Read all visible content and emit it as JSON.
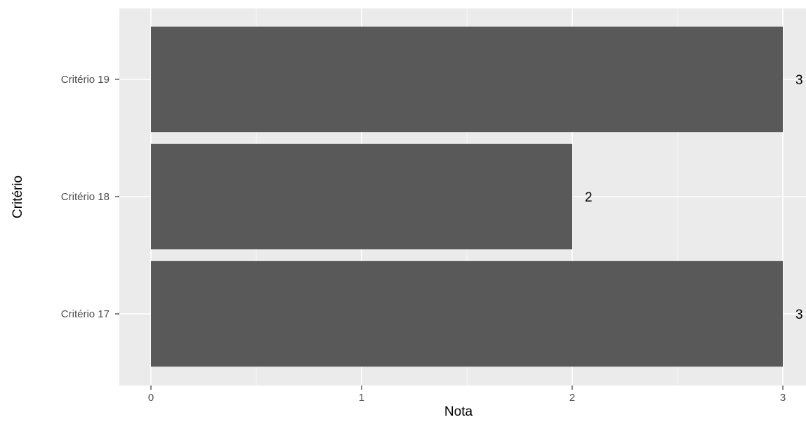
{
  "chart_data": {
    "type": "bar",
    "orientation": "horizontal",
    "categories": [
      "Critério 17",
      "Critério 18",
      "Critério 19"
    ],
    "values": [
      3,
      2,
      3
    ],
    "data_labels": [
      "3",
      "2",
      "3"
    ],
    "x_ticks": [
      "0",
      "1",
      "2",
      "3"
    ],
    "xlabel": "Nota",
    "ylabel": "Critério",
    "xlim": [
      0,
      3
    ],
    "grid": true,
    "colors": {
      "bar": "#595959",
      "panel": "#ebebeb",
      "grid_major": "#ffffff",
      "grid_minor": "#f7f7f7",
      "tick_text": "#4d4d4d",
      "tick_mark": "#333333"
    }
  }
}
